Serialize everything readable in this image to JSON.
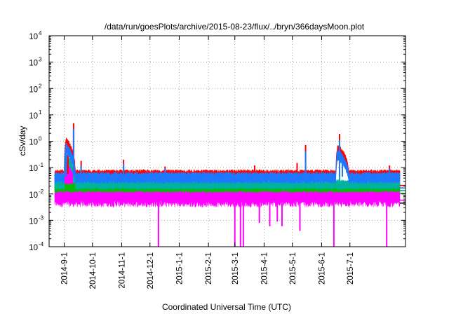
{
  "chart_data": {
    "type": "line",
    "title": "/data/run/goesPlots/archive/2015-08-23/flux/../bryn/366daysMoon.plot",
    "xlabel": "Coordinated Universal Time (UTC)",
    "ylabel": "cSv/day",
    "yscale": "log",
    "ylim": [
      0.0001,
      10000
    ],
    "xlim": [
      "2014-08-22",
      "2015-08-23"
    ],
    "grid": true,
    "legend": "none",
    "y_ticks": [
      {
        "value": 0.0001,
        "base": "10",
        "exp": "-4"
      },
      {
        "value": 0.001,
        "base": "10",
        "exp": "-3"
      },
      {
        "value": 0.01,
        "base": "10",
        "exp": "-2"
      },
      {
        "value": 0.1,
        "base": "10",
        "exp": "-1"
      },
      {
        "value": 1,
        "base": "10",
        "exp": "0"
      },
      {
        "value": 10,
        "base": "10",
        "exp": "1"
      },
      {
        "value": 100,
        "base": "10",
        "exp": "2"
      },
      {
        "value": 1000,
        "base": "10",
        "exp": "3"
      },
      {
        "value": 10000,
        "base": "10",
        "exp": "4"
      }
    ],
    "x_ticks": [
      {
        "label": "2014-9-1",
        "day": 10
      },
      {
        "label": "2014-10-1",
        "day": 40
      },
      {
        "label": "2014-11-1",
        "day": 71
      },
      {
        "label": "2014-12-1",
        "day": 101
      },
      {
        "label": "2015-1-1",
        "day": 132
      },
      {
        "label": "2015-2-1",
        "day": 163
      },
      {
        "label": "2015-3-1",
        "day": 191
      },
      {
        "label": "2015-4-1",
        "day": 222
      },
      {
        "label": "2015-5-1",
        "day": 252
      },
      {
        "label": "2015-6-1",
        "day": 283
      },
      {
        "label": "2015-7-1",
        "day": 313
      }
    ],
    "x_extent_days": 366,
    "series": [
      {
        "name": "red",
        "color": "#ff0000",
        "baseline": 0.058,
        "spread": 0.35,
        "events": [
          {
            "day": 12,
            "value": 0.95
          },
          {
            "day": 14,
            "value": 0.8
          },
          {
            "day": 20,
            "value": 4.8
          },
          {
            "day": 28,
            "value": 0.18
          },
          {
            "day": 73,
            "value": 0.2
          },
          {
            "day": 117,
            "value": 0.11
          },
          {
            "day": 212,
            "value": 0.12
          },
          {
            "day": 257,
            "value": 0.15
          },
          {
            "day": 266,
            "value": 0.72
          },
          {
            "day": 302,
            "value": 1.9
          },
          {
            "day": 305,
            "value": 0.4
          },
          {
            "day": 355,
            "value": 0.12
          }
        ],
        "flares": [
          {
            "start": 10,
            "end": 22,
            "peak": 0.9
          },
          {
            "start": 298,
            "end": 312,
            "peak": 0.5
          }
        ]
      },
      {
        "name": "blue",
        "color": "#1e78ff",
        "baseline": 0.045,
        "spread": 0.4,
        "events": [
          {
            "day": 12,
            "value": 0.5
          },
          {
            "day": 20,
            "value": 3.0
          },
          {
            "day": 28,
            "value": 0.12
          },
          {
            "day": 73,
            "value": 0.14
          },
          {
            "day": 117,
            "value": 0.09
          },
          {
            "day": 266,
            "value": 0.42
          },
          {
            "day": 302,
            "value": 1.1
          },
          {
            "day": 305,
            "value": 0.28
          },
          {
            "day": 355,
            "value": 0.09
          }
        ],
        "flares": [
          {
            "start": 10,
            "end": 22,
            "peak": 0.55
          },
          {
            "start": 298,
            "end": 312,
            "peak": 0.3
          }
        ]
      },
      {
        "name": "teal",
        "color": "#00b3a0",
        "baseline": 0.026,
        "spread": 0.25,
        "events": [
          {
            "day": 20,
            "value": 0.35
          },
          {
            "day": 302,
            "value": 0.06
          }
        ],
        "flares": [
          {
            "start": 10,
            "end": 22,
            "peak": 0.25
          }
        ]
      },
      {
        "name": "green",
        "color": "#00c000",
        "baseline": 0.02,
        "spread": 0.2,
        "events": [],
        "flares": []
      },
      {
        "name": "magenta",
        "color": "#ff00ff",
        "baseline": 0.022,
        "lower": 0.0045,
        "spread": 0.3,
        "events": [],
        "flares": [
          {
            "start": 10,
            "end": 22,
            "peak": 0.12
          }
        ],
        "dropouts": [
          {
            "day": 110,
            "value": 0.0001
          },
          {
            "day": 191,
            "value": 0.0001
          },
          {
            "day": 197,
            "value": 0.0001
          },
          {
            "day": 200,
            "value": 0.0001
          },
          {
            "day": 217,
            "value": 0.0008
          },
          {
            "day": 228,
            "value": 0.0006
          },
          {
            "day": 236,
            "value": 0.0009
          },
          {
            "day": 241,
            "value": 0.0006
          },
          {
            "day": 260,
            "value": 0.0004
          },
          {
            "day": 296,
            "value": 0.0001
          },
          {
            "day": 352,
            "value": 0.0001
          }
        ]
      }
    ],
    "right_edge_markers": [
      {
        "color": "#ff0000",
        "value": 0.021
      },
      {
        "color": "#1e78ff",
        "value": 0.017
      },
      {
        "color": "#00b3a0",
        "value": 0.0135
      },
      {
        "color": "#00c000",
        "value": 0.0105
      },
      {
        "color": "#ff00ff",
        "value": 0.0058
      },
      {
        "color": "#000000",
        "value": 0.0045
      }
    ]
  }
}
